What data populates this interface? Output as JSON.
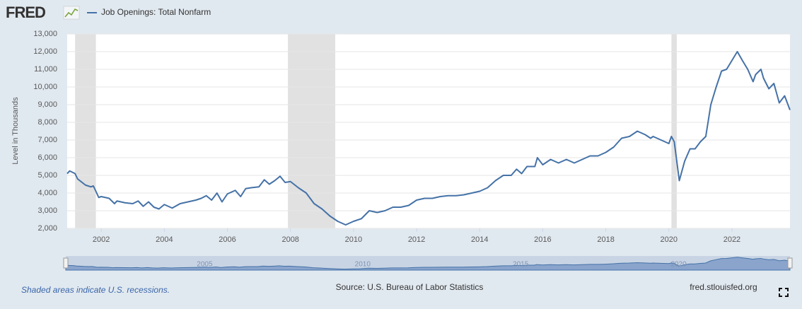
{
  "chart_data": {
    "type": "line",
    "logo": "FRED",
    "ylabel": "Level in Thousands",
    "note": "Shaded areas indicate U.S. recessions.",
    "source": "Source: U.S. Bureau of Labor Statistics",
    "site": "fred.stlouisfed.org",
    "grid": true,
    "xlim": [
      2000.92,
      2023.84
    ],
    "xticks": [
      2002,
      2004,
      2006,
      2008,
      2010,
      2012,
      2014,
      2016,
      2018,
      2020,
      2022
    ],
    "ylim": [
      2000,
      13000
    ],
    "yticks": [
      {
        "value": 2000,
        "label": "2,000"
      },
      {
        "value": 3000,
        "label": "3,000"
      },
      {
        "value": 4000,
        "label": "4,000"
      },
      {
        "value": 5000,
        "label": "5,000"
      },
      {
        "value": 6000,
        "label": "6,000"
      },
      {
        "value": 7000,
        "label": "7,000"
      },
      {
        "value": 8000,
        "label": "8,000"
      },
      {
        "value": 9000,
        "label": "9,000"
      },
      {
        "value": 10000,
        "label": "10,000"
      },
      {
        "value": 11000,
        "label": "11,000"
      },
      {
        "value": 12000,
        "label": "12,000"
      },
      {
        "value": 13000,
        "label": "13,000"
      }
    ],
    "recessions": [
      [
        2001.17,
        2001.83
      ],
      [
        2007.92,
        2009.42
      ],
      [
        2020.08,
        2020.25
      ]
    ],
    "navigator_ticks": [
      2005,
      2010,
      2015,
      2020
    ],
    "x": [
      2000.92,
      2001.0,
      2001.17,
      2001.25,
      2001.5,
      2001.67,
      2001.75,
      2001.83,
      2001.92,
      2002.0,
      2002.25,
      2002.42,
      2002.5,
      2002.75,
      2003.0,
      2003.17,
      2003.33,
      2003.5,
      2003.67,
      2003.83,
      2004.0,
      2004.25,
      2004.5,
      2004.75,
      2005.0,
      2005.17,
      2005.33,
      2005.5,
      2005.67,
      2005.83,
      2006.0,
      2006.25,
      2006.42,
      2006.58,
      2006.75,
      2007.0,
      2007.17,
      2007.33,
      2007.5,
      2007.67,
      2007.83,
      2008.0,
      2008.25,
      2008.5,
      2008.75,
      2009.0,
      2009.25,
      2009.5,
      2009.75,
      2010.0,
      2010.25,
      2010.5,
      2010.75,
      2011.0,
      2011.25,
      2011.5,
      2011.75,
      2012.0,
      2012.25,
      2012.5,
      2012.75,
      2013.0,
      2013.25,
      2013.5,
      2013.75,
      2014.0,
      2014.25,
      2014.5,
      2014.75,
      2015.0,
      2015.17,
      2015.33,
      2015.5,
      2015.75,
      2015.83,
      2016.0,
      2016.25,
      2016.5,
      2016.75,
      2017.0,
      2017.25,
      2017.5,
      2017.75,
      2018.0,
      2018.25,
      2018.5,
      2018.75,
      2019.0,
      2019.25,
      2019.42,
      2019.5,
      2019.75,
      2020.0,
      2020.08,
      2020.17,
      2020.33,
      2020.5,
      2020.67,
      2020.83,
      2021.0,
      2021.17,
      2021.33,
      2021.5,
      2021.67,
      2021.83,
      2022.0,
      2022.17,
      2022.33,
      2022.5,
      2022.67,
      2022.75,
      2022.92,
      2023.0,
      2023.17,
      2023.33,
      2023.5,
      2023.67,
      2023.84
    ],
    "series": [
      {
        "name": "Job Openings: Total Nonfarm",
        "color": "#4572a7",
        "values": [
          5100,
          5250,
          5100,
          4800,
          4450,
          4350,
          4400,
          4100,
          3750,
          3800,
          3700,
          3400,
          3550,
          3450,
          3400,
          3550,
          3250,
          3500,
          3200,
          3100,
          3350,
          3150,
          3400,
          3500,
          3600,
          3700,
          3850,
          3600,
          4000,
          3500,
          3950,
          4150,
          3800,
          4250,
          4300,
          4350,
          4750,
          4500,
          4700,
          4950,
          4600,
          4650,
          4300,
          4000,
          3400,
          3100,
          2700,
          2400,
          2200,
          2400,
          2550,
          3000,
          2900,
          3000,
          3200,
          3200,
          3300,
          3600,
          3700,
          3700,
          3800,
          3850,
          3850,
          3900,
          4000,
          4100,
          4300,
          4700,
          5000,
          5000,
          5350,
          5100,
          5500,
          5500,
          6000,
          5600,
          5900,
          5700,
          5900,
          5700,
          5900,
          6100,
          6100,
          6300,
          6600,
          7100,
          7200,
          7500,
          7300,
          7100,
          7200,
          7000,
          6800,
          7200,
          6900,
          4700,
          5800,
          6500,
          6500,
          6900,
          7200,
          9000,
          10000,
          10900,
          11000,
          11500,
          12000,
          11500,
          11000,
          10300,
          10700,
          11000,
          10500,
          9900,
          10200,
          9100,
          9500,
          8700
        ]
      }
    ]
  }
}
